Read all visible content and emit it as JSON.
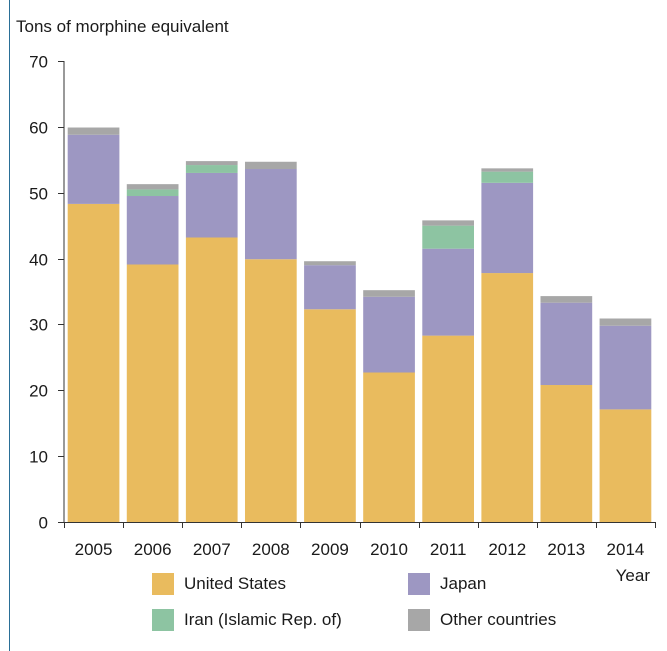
{
  "chart_data": {
    "type": "bar",
    "stacked": true,
    "ylabel": "Tons of morphine equivalent",
    "xlabel": "Year",
    "ylim": [
      0,
      70
    ],
    "yticks": [
      0,
      10,
      20,
      30,
      40,
      50,
      60,
      70
    ],
    "categories": [
      "2005",
      "2006",
      "2007",
      "2008",
      "2009",
      "2010",
      "2011",
      "2012",
      "2013",
      "2014"
    ],
    "series": [
      {
        "name": "United States",
        "color": "#E9BB5E",
        "values": [
          48.3,
          39.1,
          43.2,
          39.9,
          32.3,
          22.7,
          28.3,
          37.8,
          20.8,
          17.1
        ]
      },
      {
        "name": "Japan",
        "color": "#9D97C2",
        "values": [
          10.5,
          10.4,
          9.8,
          13.7,
          6.7,
          11.5,
          13.2,
          13.7,
          12.5,
          12.7
        ]
      },
      {
        "name": "Iran (Islamic Rep. of)",
        "color": "#8DC4A2",
        "values": [
          0.0,
          1.0,
          1.2,
          0.0,
          0.0,
          0.0,
          3.5,
          1.7,
          0.0,
          0.0
        ]
      },
      {
        "name": "Other countries",
        "color": "#A7A7A7",
        "values": [
          1.1,
          0.8,
          0.6,
          1.1,
          0.6,
          1.0,
          0.8,
          0.5,
          1.0,
          1.1
        ]
      }
    ],
    "legend_placement": "bottom"
  }
}
